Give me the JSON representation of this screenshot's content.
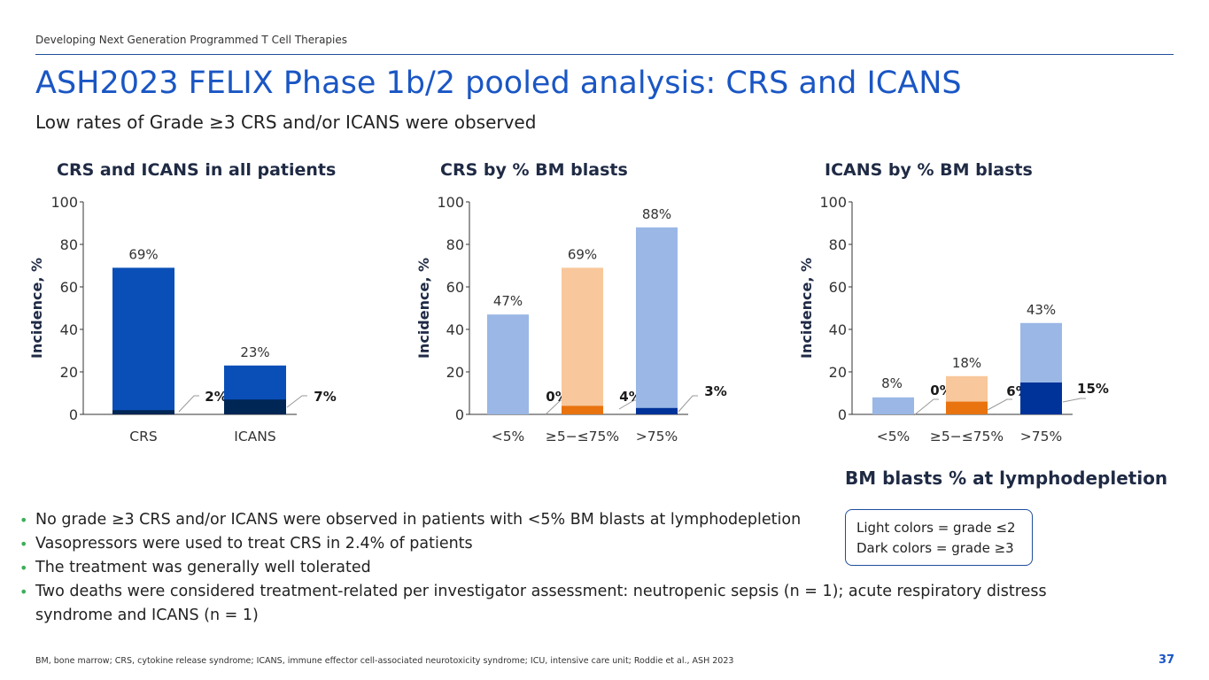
{
  "header": {
    "text": "Developing Next Generation Programmed T Cell Therapies"
  },
  "title": "ASH2023 FELIX Phase 1b/2 pooled analysis: CRS and ICANS",
  "subtitle": "Low rates of Grade ≥3 CRS and/or ICANS were observed",
  "colors": {
    "accent": "#1a56c4",
    "crs_all_light": "#0a4fb8",
    "crs_all_dark": "#002656",
    "blue_light": "#9ab7e6",
    "blue_dark": "#003399",
    "orange_light": "#f8c79b",
    "orange_dark": "#e8730f",
    "bullet": "#3dae5a"
  },
  "chart_data": [
    {
      "id": "all",
      "type": "bar",
      "title": "CRS and ICANS in all patients",
      "ylabel": "Incidence, %",
      "xlabel": "",
      "ylim": [
        0,
        100
      ],
      "yticks": [
        "0",
        "20",
        "40",
        "60",
        "80",
        "100"
      ],
      "categories": [
        "CRS",
        "ICANS"
      ],
      "series": [
        {
          "name": "Grade ≤2 (light)",
          "values": [
            69,
            23
          ],
          "labels": [
            "69%",
            "23%"
          ],
          "colors": [
            "#0a4fb8",
            "#0a4fb8"
          ]
        },
        {
          "name": "Grade ≥3 (dark)",
          "values": [
            2,
            7
          ],
          "labels": [
            "2%",
            "7%"
          ],
          "colors": [
            "#002656",
            "#002656"
          ]
        }
      ]
    },
    {
      "id": "crs",
      "type": "bar",
      "title": "CRS by % BM blasts",
      "ylabel": "Incidence, %",
      "xlabel": "",
      "ylim": [
        0,
        100
      ],
      "yticks": [
        "0",
        "20",
        "40",
        "60",
        "80",
        "100"
      ],
      "categories": [
        "<5%",
        "≥5−≤75%",
        ">75%"
      ],
      "series": [
        {
          "name": "Grade ≤2 (light)",
          "values": [
            47,
            69,
            88
          ],
          "labels": [
            "47%",
            "69%",
            "88%"
          ],
          "colors": [
            "#9ab7e6",
            "#f8c79b",
            "#9ab7e6"
          ]
        },
        {
          "name": "Grade ≥3 (dark)",
          "values": [
            0,
            4,
            3
          ],
          "labels": [
            "0%",
            "4%",
            "3%"
          ],
          "colors": [
            "#003399",
            "#e8730f",
            "#003399"
          ]
        }
      ]
    },
    {
      "id": "icans",
      "type": "bar",
      "title": "ICANS by % BM blasts",
      "ylabel": "Incidence, %",
      "xlabel": "BM blasts % at lymphodepletion",
      "ylim": [
        0,
        100
      ],
      "yticks": [
        "0",
        "20",
        "40",
        "60",
        "80",
        "100"
      ],
      "categories": [
        "<5%",
        "≥5−≤75%",
        ">75%"
      ],
      "series": [
        {
          "name": "Grade ≤2 (light)",
          "values": [
            8,
            18,
            43
          ],
          "labels": [
            "8%",
            "18%",
            "43%"
          ],
          "colors": [
            "#9ab7e6",
            "#f8c79b",
            "#9ab7e6"
          ]
        },
        {
          "name": "Grade ≥3 (dark)",
          "values": [
            0,
            6,
            15
          ],
          "labels": [
            "0%",
            "6%",
            "15%"
          ],
          "colors": [
            "#003399",
            "#e8730f",
            "#003399"
          ]
        }
      ]
    }
  ],
  "legend": {
    "line1": "Light colors = grade ≤2",
    "line2": "Dark colors = grade ≥3"
  },
  "bullets": [
    "No grade ≥3 CRS and/or ICANS were observed in patients with <5% BM blasts at lymphodepletion",
    "Vasopressors were used to treat CRS in 2.4% of patients",
    "The treatment was generally well tolerated",
    "Two deaths were considered treatment-related per investigator assessment: neutropenic sepsis (n = 1); acute respiratory distress syndrome and ICANS (n = 1)"
  ],
  "footnote": "BM, bone marrow; CRS, cytokine release syndrome; ICANS, immune effector cell-associated neurotoxicity syndrome; ICU, intensive care unit; Roddie et al., ASH 2023",
  "page_number": "37"
}
